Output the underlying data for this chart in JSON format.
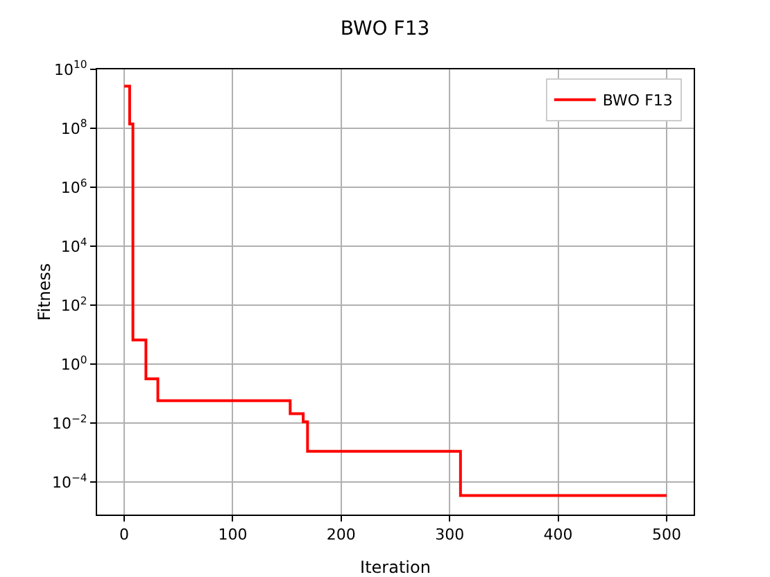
{
  "chart_data": {
    "type": "step",
    "title": "BWO F13",
    "xlabel": "Iteration",
    "ylabel": "Fitness",
    "series": [
      {
        "name": "BWO F13",
        "color": "#ff0000",
        "x": [
          0,
          5,
          8,
          20,
          31,
          153,
          165,
          169,
          310,
          500
        ],
        "values": [
          2700000000.0,
          140000000.0,
          6.6,
          0.32,
          0.058,
          0.021,
          0.011,
          0.0011,
          3.5e-05,
          3.5e-05
        ]
      }
    ],
    "xlim": [
      -25,
      525
    ],
    "xticks": [
      0,
      100,
      200,
      300,
      400,
      500
    ],
    "ylim": [
      7.9e-06,
      10000000000.0
    ],
    "yticks": [
      {
        "value": 0.0001,
        "label": "10$^{−4}$"
      },
      {
        "value": 0.01,
        "label": "10$^{−2}$"
      },
      {
        "value": 1,
        "label": "10$^{0}$"
      },
      {
        "value": 100,
        "label": "10$^{2}$"
      },
      {
        "value": 10000,
        "label": "10$^{4}$"
      },
      {
        "value": 1000000,
        "label": "10$^{6}$"
      },
      {
        "value": 100000000,
        "label": "10$^{8}$"
      },
      {
        "value": 10000000000,
        "label": "10$^{10}$"
      }
    ],
    "log": "y",
    "grid": true,
    "legend": "top right",
    "line_style": "solid",
    "marker": "none"
  }
}
